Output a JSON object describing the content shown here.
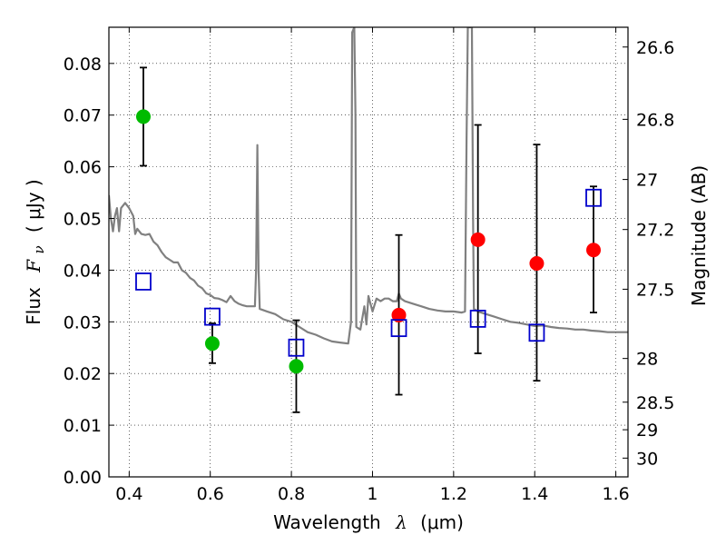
{
  "chart_data": {
    "type": "scatter",
    "xlabel": {
      "prefix": "Wavelength",
      "symbol": "λ",
      "unit": "(μm)"
    },
    "ylabel": {
      "prefix": "Flux",
      "symbol": "F",
      "subscript": "ν",
      "unit": "( μJy )"
    },
    "ylabel_right": "Magnitude (AB)",
    "xlim": [
      0.35,
      1.63
    ],
    "ylim": [
      0.0,
      0.087
    ],
    "x_ticks": [
      0.4,
      0.6,
      0.8,
      1.0,
      1.2,
      1.4,
      1.6
    ],
    "x_tick_labels": [
      "0.4",
      "0.6",
      "0.8",
      "1",
      "1.2",
      "1.4",
      "1.6"
    ],
    "y_ticks": [
      0.0,
      0.01,
      0.02,
      0.03,
      0.04,
      0.05,
      0.06,
      0.07,
      0.08
    ],
    "y_tick_labels": [
      "0.00",
      "0.01",
      "0.02",
      "0.03",
      "0.04",
      "0.05",
      "0.06",
      "0.07",
      "0.08"
    ],
    "right_ticks": [
      26.6,
      26.8,
      27.0,
      27.2,
      27.5,
      28.0,
      28.5,
      29.0,
      30.0
    ],
    "right_tick_labels": [
      "26.6",
      "26.8",
      "27",
      "27.2",
      "27.5",
      "28",
      "28.5",
      "29",
      "30"
    ],
    "grid": true,
    "series": [
      {
        "kind": "filled-circle",
        "color": "#00bb00",
        "points": [
          {
            "x": 0.435,
            "y": 0.0697,
            "err": [
              0.0602,
              0.0792
            ]
          },
          {
            "x": 0.605,
            "y": 0.0258,
            "err": [
              0.022,
              0.0297
            ]
          },
          {
            "x": 0.812,
            "y": 0.0214,
            "err": [
              0.0125,
              0.0303
            ]
          }
        ]
      },
      {
        "kind": "filled-circle",
        "color": "#ff0000",
        "points": [
          {
            "x": 1.065,
            "y": 0.0313,
            "err": [
              0.0159,
              0.0468
            ]
          },
          {
            "x": 1.26,
            "y": 0.0459,
            "err": [
              0.0239,
              0.0681
            ]
          },
          {
            "x": 1.405,
            "y": 0.0413,
            "err": [
              0.0186,
              0.0643
            ]
          },
          {
            "x": 1.545,
            "y": 0.0439,
            "err": [
              0.0318,
              0.0562
            ]
          }
        ]
      },
      {
        "kind": "open-square",
        "color": "#0000cc",
        "points": [
          {
            "x": 0.435,
            "y": 0.0378
          },
          {
            "x": 0.605,
            "y": 0.031
          },
          {
            "x": 0.812,
            "y": 0.025
          },
          {
            "x": 1.065,
            "y": 0.0288
          },
          {
            "x": 1.26,
            "y": 0.0306
          },
          {
            "x": 1.405,
            "y": 0.0279
          },
          {
            "x": 1.545,
            "y": 0.054
          }
        ]
      },
      {
        "kind": "line",
        "color": "#808080",
        "points": [
          [
            0.35,
            0.0545
          ],
          [
            0.355,
            0.05
          ],
          [
            0.36,
            0.0475
          ],
          [
            0.365,
            0.0505
          ],
          [
            0.37,
            0.052
          ],
          [
            0.375,
            0.0475
          ],
          [
            0.38,
            0.052
          ],
          [
            0.39,
            0.053
          ],
          [
            0.4,
            0.052
          ],
          [
            0.41,
            0.0505
          ],
          [
            0.415,
            0.047
          ],
          [
            0.42,
            0.048
          ],
          [
            0.43,
            0.047
          ],
          [
            0.44,
            0.0468
          ],
          [
            0.45,
            0.047
          ],
          [
            0.46,
            0.0455
          ],
          [
            0.47,
            0.0448
          ],
          [
            0.48,
            0.0435
          ],
          [
            0.49,
            0.0425
          ],
          [
            0.5,
            0.042
          ],
          [
            0.51,
            0.0415
          ],
          [
            0.52,
            0.0415
          ],
          [
            0.53,
            0.04
          ],
          [
            0.54,
            0.0395
          ],
          [
            0.55,
            0.0385
          ],
          [
            0.56,
            0.038
          ],
          [
            0.57,
            0.037
          ],
          [
            0.58,
            0.0365
          ],
          [
            0.59,
            0.0355
          ],
          [
            0.6,
            0.0352
          ],
          [
            0.61,
            0.0346
          ],
          [
            0.62,
            0.0345
          ],
          [
            0.63,
            0.0342
          ],
          [
            0.64,
            0.0338
          ],
          [
            0.65,
            0.035
          ],
          [
            0.66,
            0.034
          ],
          [
            0.67,
            0.0335
          ],
          [
            0.68,
            0.0332
          ],
          [
            0.69,
            0.033
          ],
          [
            0.7,
            0.033
          ],
          [
            0.71,
            0.033
          ],
          [
            0.713,
            0.04
          ],
          [
            0.716,
            0.0642
          ],
          [
            0.719,
            0.04
          ],
          [
            0.722,
            0.0325
          ],
          [
            0.74,
            0.032
          ],
          [
            0.76,
            0.0315
          ],
          [
            0.78,
            0.0305
          ],
          [
            0.8,
            0.03
          ],
          [
            0.82,
            0.029
          ],
          [
            0.84,
            0.028
          ],
          [
            0.86,
            0.0275
          ],
          [
            0.88,
            0.0268
          ],
          [
            0.9,
            0.0262
          ],
          [
            0.92,
            0.026
          ],
          [
            0.94,
            0.0258
          ],
          [
            0.947,
            0.03
          ],
          [
            0.95,
            0.086
          ],
          [
            0.955,
            0.087
          ],
          [
            0.958,
            0.07
          ],
          [
            0.96,
            0.029
          ],
          [
            0.97,
            0.0285
          ],
          [
            0.98,
            0.033
          ],
          [
            0.985,
            0.0295
          ],
          [
            0.99,
            0.035
          ],
          [
            1.0,
            0.032
          ],
          [
            1.01,
            0.0345
          ],
          [
            1.02,
            0.034
          ],
          [
            1.03,
            0.0345
          ],
          [
            1.04,
            0.0345
          ],
          [
            1.05,
            0.034
          ],
          [
            1.06,
            0.034
          ],
          [
            1.065,
            0.0355
          ],
          [
            1.07,
            0.0345
          ],
          [
            1.08,
            0.034
          ],
          [
            1.1,
            0.0335
          ],
          [
            1.12,
            0.033
          ],
          [
            1.14,
            0.0325
          ],
          [
            1.16,
            0.0322
          ],
          [
            1.18,
            0.032
          ],
          [
            1.2,
            0.032
          ],
          [
            1.22,
            0.0318
          ],
          [
            1.228,
            0.032
          ],
          [
            1.232,
            0.065
          ],
          [
            1.235,
            0.087
          ],
          [
            1.245,
            0.087
          ],
          [
            1.248,
            0.05
          ],
          [
            1.25,
            0.0325
          ],
          [
            1.26,
            0.032
          ],
          [
            1.28,
            0.0315
          ],
          [
            1.3,
            0.031
          ],
          [
            1.32,
            0.0305
          ],
          [
            1.34,
            0.03
          ],
          [
            1.36,
            0.0298
          ],
          [
            1.38,
            0.0295
          ],
          [
            1.4,
            0.0292
          ],
          [
            1.42,
            0.0293
          ],
          [
            1.44,
            0.029
          ],
          [
            1.46,
            0.0288
          ],
          [
            1.48,
            0.0287
          ],
          [
            1.5,
            0.0285
          ],
          [
            1.52,
            0.0285
          ],
          [
            1.54,
            0.0283
          ],
          [
            1.56,
            0.0282
          ],
          [
            1.58,
            0.028
          ],
          [
            1.6,
            0.028
          ],
          [
            1.63,
            0.028
          ]
        ]
      }
    ]
  }
}
